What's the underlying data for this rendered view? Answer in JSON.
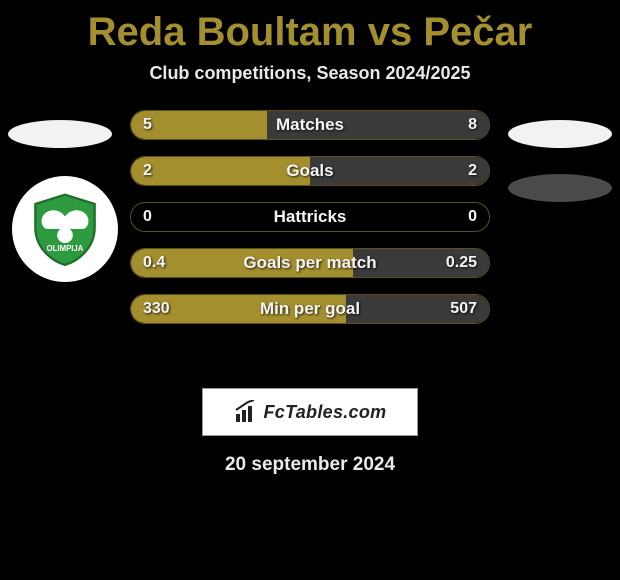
{
  "title": {
    "text": "Reda Boultam vs Pečar",
    "color": "#a48f2f",
    "fontsize": 40
  },
  "subtitle": {
    "text": "Club competitions, Season 2024/2025",
    "fontsize": 18
  },
  "colors": {
    "left_team_ellipse": "#f2f2f2",
    "right_team_ellipse": "#f2f2f2",
    "right_player_ellipse": "#4a4a4a",
    "badge_bg": "#ffffff",
    "badge_primary": "#2e9a3f",
    "bar_left_fill": "#a48f2f",
    "bar_right_fill": "#3a3a3a",
    "bar_border": "#5a5020",
    "brand_bg": "#ffffff",
    "brand_text": "#222222",
    "background": "#000000"
  },
  "sides": {
    "left_player_badge": true,
    "left_team_ellipse": true,
    "right_team_ellipse": true,
    "right_player_ellipse": true
  },
  "bars": {
    "height": 30,
    "gap": 16,
    "radius": 16,
    "label_fontsize": 17,
    "value_fontsize": 16,
    "items": [
      {
        "label": "Matches",
        "left_val": "5",
        "right_val": "8",
        "left_pct": 38,
        "right_pct": 62
      },
      {
        "label": "Goals",
        "left_val": "2",
        "right_val": "2",
        "left_pct": 50,
        "right_pct": 50
      },
      {
        "label": "Hattricks",
        "left_val": "0",
        "right_val": "0",
        "left_pct": 0,
        "right_pct": 0
      },
      {
        "label": "Goals per match",
        "left_val": "0.4",
        "right_val": "0.25",
        "left_pct": 62,
        "right_pct": 38
      },
      {
        "label": "Min per goal",
        "left_val": "330",
        "right_val": "507",
        "left_pct": 60,
        "right_pct": 40
      }
    ]
  },
  "brand": {
    "text": "FcTables.com",
    "icon": "bar-chart-icon"
  },
  "date": {
    "text": "20 september 2024",
    "fontsize": 19
  }
}
